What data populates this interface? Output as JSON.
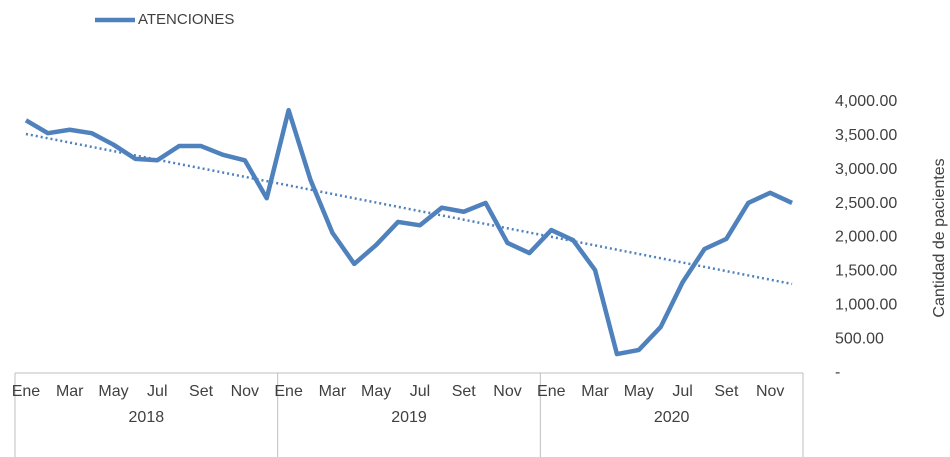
{
  "chart_data": {
    "type": "line",
    "y_axis_label": "Cantidad de pacientes",
    "categories": [
      "Ene",
      null,
      "Mar",
      null,
      "May",
      null,
      "Jul",
      null,
      "Set",
      null,
      "Nov",
      null,
      "Ene",
      null,
      "Mar",
      null,
      "May",
      null,
      "Jul",
      null,
      "Set",
      null,
      "Nov",
      null,
      "Ene",
      null,
      "Mar",
      null,
      "May",
      null,
      "Jul",
      null,
      "Set",
      null,
      "Nov",
      null
    ],
    "groups": [
      "2018",
      "2019",
      "2020"
    ],
    "series": [
      {
        "name": "ATENCIONES",
        "color": "#4f81bd",
        "values": [
          3730,
          3540,
          3590,
          3540,
          3370,
          3160,
          3140,
          3350,
          3350,
          3220,
          3140,
          2580,
          3880,
          2850,
          2070,
          1610,
          1890,
          2230,
          2180,
          2440,
          2380,
          2510,
          1920,
          1770,
          2110,
          1960,
          1520,
          280,
          340,
          680,
          1340,
          1830,
          1980,
          2510,
          2660,
          2510
        ]
      }
    ],
    "trendline": true,
    "ylim": [
      0,
      4000
    ],
    "yticks": [
      {
        "value": 0,
        "label": "-"
      },
      {
        "value": 500,
        "label": "500.00"
      },
      {
        "value": 1000,
        "label": "1,000.00"
      },
      {
        "value": 1500,
        "label": "1,500.00"
      },
      {
        "value": 2000,
        "label": "2,000.00"
      },
      {
        "value": 2500,
        "label": "2,500.00"
      },
      {
        "value": 3000,
        "label": "3,000.00"
      },
      {
        "value": 3500,
        "label": "3,500.00"
      },
      {
        "value": 4000,
        "label": "4,000.00"
      }
    ],
    "legend": "top-left",
    "grid": false
  }
}
